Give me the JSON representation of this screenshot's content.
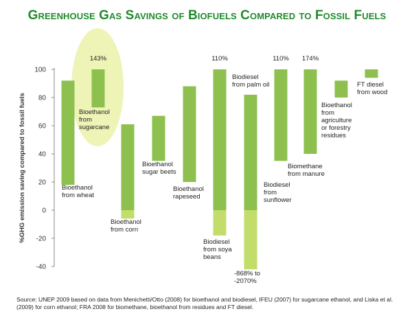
{
  "title": "Greenhouse Gas Savings of Biofuels Compared to Fossil Fuels",
  "source": "Source: UNEP 2009 based on data from Menichetti/Otto (2008) for bioethanol and biodiesel, IFEU (2007) for sugarcane ethanol, and Liska et al. (2009) for corn ethanol; FRA 2008 for biomethane, bioethanol from residues and FT diesel.",
  "colors": {
    "bar": "#8dc04f",
    "bar_negative": "#c2dd6a",
    "highlight": "#eef3b6",
    "title": "#1f8a2c",
    "axis": "#888888"
  },
  "chart_data": {
    "type": "bar",
    "subtype": "floating-range",
    "ylabel": "%GHG emission saving compared to fossil fuels",
    "ylim": [
      -40,
      100
    ],
    "yticks": [
      -40,
      -20,
      0,
      20,
      40,
      60,
      80,
      100
    ],
    "grid": false,
    "bars": [
      {
        "label": "Bioethanol\nfrom wheat",
        "low": 18,
        "high": 92
      },
      {
        "label": "Bioethanol\nfrom\nsugarcane",
        "low": 73,
        "high": 100,
        "top_label": "143%",
        "highlight": true
      },
      {
        "label": "Bioethanol\nfrom corn",
        "low": -6,
        "high": 61
      },
      {
        "label": "Bioethanol\nsugar beets",
        "low": 35,
        "high": 67
      },
      {
        "label": "Bioethanol\nrapeseed",
        "low": 20,
        "high": 88
      },
      {
        "label": "Biodiesel\nfrom soya\nbeans",
        "low": -18,
        "high": 100,
        "top_label": "110%"
      },
      {
        "label": "Biodiesel\nfrom palm oil",
        "low": -42,
        "high": 82,
        "bottom_label": "-868% to\n-2070%"
      },
      {
        "label": "Biodiesel\nfrom\nsunflower",
        "low": 35,
        "high": 100,
        "top_label": "110%"
      },
      {
        "label": "Biomethane\nfrom manure",
        "low": 40,
        "high": 100,
        "top_label": "174%"
      },
      {
        "label": "Bioethanol\nfrom\nagriculture\nor forestry\nresidues",
        "low": 80,
        "high": 92
      },
      {
        "label": "FT diesel\nfrom wood",
        "low": 94,
        "high": 100
      }
    ]
  }
}
